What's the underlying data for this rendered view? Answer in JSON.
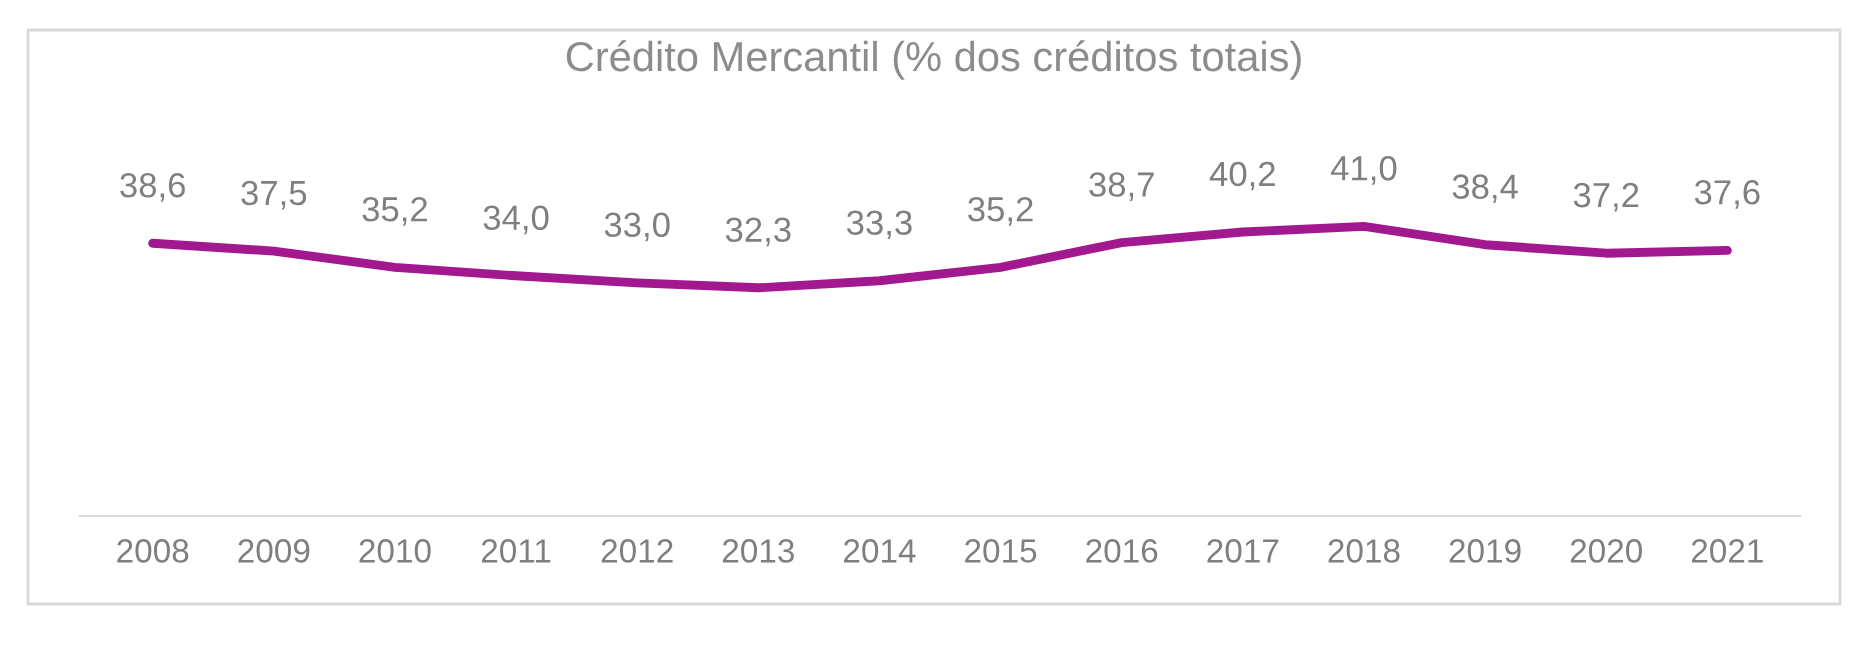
{
  "chart_data": {
    "type": "line",
    "title": "Crédito Mercantil (% dos créditos totais)",
    "categories": [
      "2008",
      "2009",
      "2010",
      "2011",
      "2012",
      "2013",
      "2014",
      "2015",
      "2016",
      "2017",
      "2018",
      "2019",
      "2020",
      "2021"
    ],
    "series": [
      {
        "color": "#a2198f",
        "values": [
          38.6,
          37.5,
          35.2,
          34.0,
          33.0,
          32.3,
          33.3,
          35.2,
          38.7,
          40.2,
          41.0,
          38.4,
          37.2,
          37.6
        ],
        "value_labels": [
          "38,6",
          "37,5",
          "35,2",
          "34,0",
          "33,0",
          "32,3",
          "33,3",
          "35,2",
          "38,7",
          "40,2",
          "41,0",
          "38,4",
          "37,2",
          "37,6"
        ]
      }
    ],
    "grid": false,
    "legend": false,
    "marker": "none",
    "line_style": "solid"
  }
}
